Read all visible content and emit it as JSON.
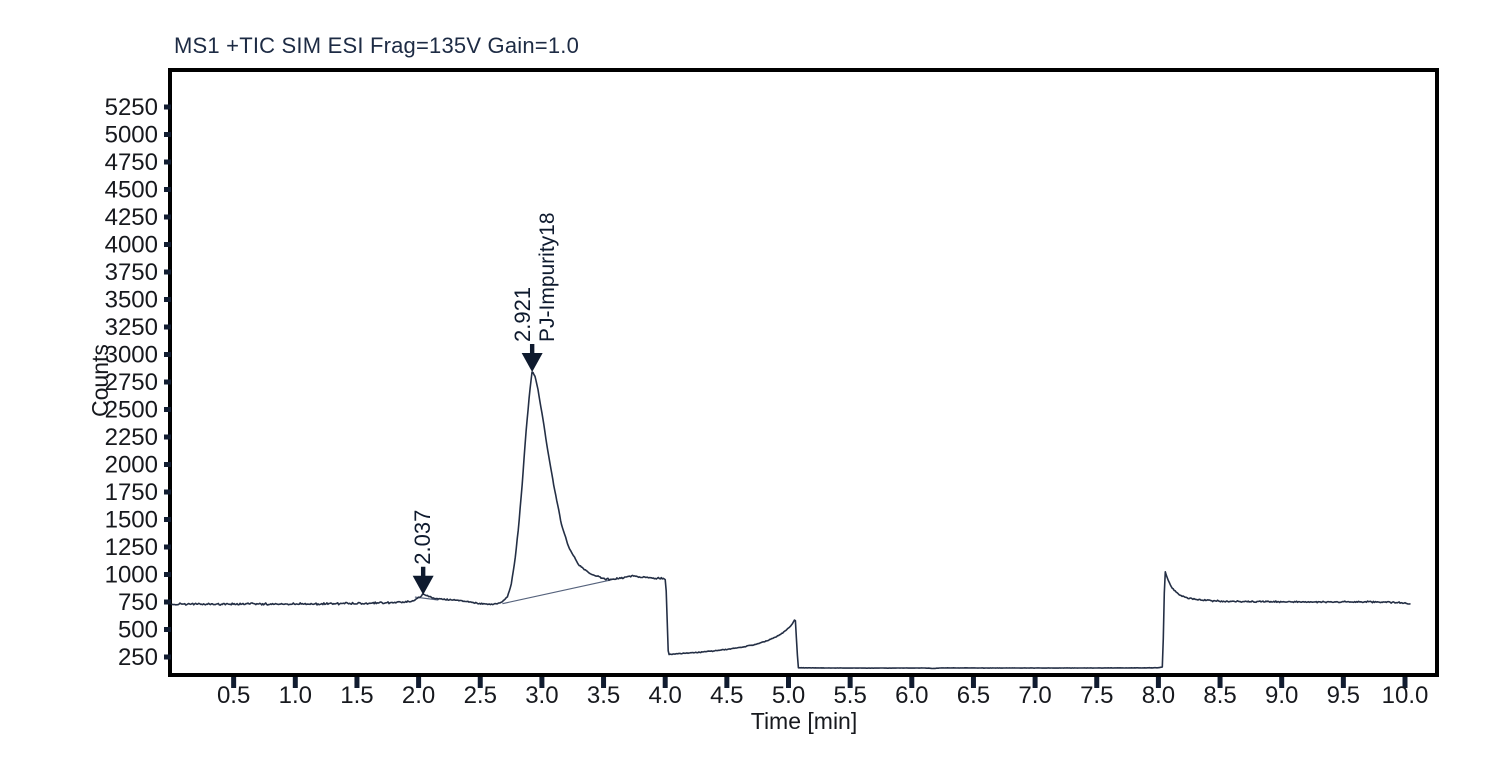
{
  "title": "MS1 +TIC SIM ESI Frag=135V Gain=1.0",
  "axes": {
    "x": {
      "label": "Time [min]",
      "tick_labels": [
        "0.5",
        "1.0",
        "1.5",
        "2.0",
        "2.5",
        "3.0",
        "3.5",
        "4.0",
        "4.5",
        "5.0",
        "5.5",
        "6.0",
        "6.5",
        "7.0",
        "7.5",
        "8.0",
        "8.5",
        "9.0",
        "9.5",
        "10.0"
      ]
    },
    "y": {
      "label": "Counts",
      "tick_values": [
        250,
        500,
        750,
        1000,
        1250,
        1500,
        1750,
        2000,
        2250,
        2500,
        2750,
        3000,
        3250,
        3500,
        3750,
        4000,
        4250,
        4500,
        4750,
        5000,
        5250
      ]
    }
  },
  "colors": {
    "background": "#ffffff",
    "trace": "#242f45",
    "axis_border": "#000000",
    "tick": "#111c30",
    "tick_label": "#17191e",
    "title_text": "#1d2b44",
    "annotation": "#0e1a2e",
    "baseline_line": "#55627c"
  },
  "chart_data": {
    "type": "line",
    "title": "MS1 +TIC SIM ESI Frag=135V Gain=1.0",
    "xlabel": "Time [min]",
    "ylabel": "Counts",
    "xlim": [
      0,
      10.24
    ],
    "ylim": [
      105,
      5570
    ],
    "x_ticks": [
      0.5,
      1.0,
      1.5,
      2.0,
      2.5,
      3.0,
      3.5,
      4.0,
      4.5,
      5.0,
      5.5,
      6.0,
      6.5,
      7.0,
      7.5,
      8.0,
      8.5,
      9.0,
      9.5,
      10.0
    ],
    "y_ticks": [
      250,
      500,
      750,
      1000,
      1250,
      1500,
      1750,
      2000,
      2250,
      2500,
      2750,
      3000,
      3250,
      3500,
      3750,
      4000,
      4250,
      4500,
      4750,
      5000,
      5250
    ],
    "grid": false,
    "legend": "none",
    "series": [
      {
        "name": "TIC",
        "unit": "counts",
        "anchors": [
          [
            0.0,
            728
          ],
          [
            0.2,
            733
          ],
          [
            0.4,
            730
          ],
          [
            0.6,
            734
          ],
          [
            0.8,
            731
          ],
          [
            1.0,
            735
          ],
          [
            1.2,
            732
          ],
          [
            1.4,
            737
          ],
          [
            1.6,
            739
          ],
          [
            1.8,
            744
          ],
          [
            1.93,
            750
          ],
          [
            1.97,
            768
          ],
          [
            2.01,
            795
          ],
          [
            2.037,
            823
          ],
          [
            2.07,
            806
          ],
          [
            2.12,
            786
          ],
          [
            2.2,
            773
          ],
          [
            2.3,
            769
          ],
          [
            2.4,
            753
          ],
          [
            2.5,
            737
          ],
          [
            2.58,
            729
          ],
          [
            2.64,
            734
          ],
          [
            2.68,
            752
          ],
          [
            2.72,
            800
          ],
          [
            2.75,
            900
          ],
          [
            2.78,
            1120
          ],
          [
            2.81,
            1420
          ],
          [
            2.84,
            1820
          ],
          [
            2.87,
            2280
          ],
          [
            2.9,
            2650
          ],
          [
            2.921,
            2850
          ],
          [
            2.945,
            2800
          ],
          [
            2.97,
            2670
          ],
          [
            3.0,
            2470
          ],
          [
            3.05,
            2110
          ],
          [
            3.1,
            1790
          ],
          [
            3.16,
            1450
          ],
          [
            3.22,
            1240
          ],
          [
            3.3,
            1085
          ],
          [
            3.4,
            1000
          ],
          [
            3.5,
            962
          ],
          [
            3.565,
            952
          ],
          [
            3.64,
            968
          ],
          [
            3.72,
            985
          ],
          [
            3.8,
            978
          ],
          [
            3.88,
            972
          ],
          [
            3.96,
            966
          ],
          [
            4.005,
            952
          ],
          [
            4.025,
            272
          ],
          [
            4.1,
            278
          ],
          [
            4.25,
            290
          ],
          [
            4.4,
            306
          ],
          [
            4.55,
            326
          ],
          [
            4.7,
            356
          ],
          [
            4.8,
            388
          ],
          [
            4.9,
            432
          ],
          [
            4.98,
            492
          ],
          [
            5.03,
            548
          ],
          [
            5.055,
            600
          ],
          [
            5.065,
            400
          ],
          [
            5.078,
            152
          ],
          [
            5.3,
            150
          ],
          [
            5.7,
            149
          ],
          [
            6.1,
            150
          ],
          [
            6.18,
            146
          ],
          [
            6.24,
            151
          ],
          [
            6.6,
            150
          ],
          [
            7.0,
            150
          ],
          [
            7.4,
            150
          ],
          [
            7.8,
            151
          ],
          [
            8.0,
            152
          ],
          [
            8.035,
            160
          ],
          [
            8.052,
            1040
          ],
          [
            8.065,
            990
          ],
          [
            8.09,
            915
          ],
          [
            8.13,
            852
          ],
          [
            8.18,
            808
          ],
          [
            8.25,
            783
          ],
          [
            8.35,
            766
          ],
          [
            8.5,
            757
          ],
          [
            8.7,
            754
          ],
          [
            9.0,
            752
          ],
          [
            9.3,
            750
          ],
          [
            9.6,
            752
          ],
          [
            9.85,
            748
          ],
          [
            10.0,
            742
          ],
          [
            10.04,
            730
          ]
        ]
      }
    ],
    "noise_regions": [
      {
        "from": 0.0,
        "to": 1.93,
        "amp": 11
      },
      {
        "from": 1.93,
        "to": 2.6,
        "amp": 7
      },
      {
        "from": 2.6,
        "to": 3.44,
        "amp": 5
      },
      {
        "from": 3.44,
        "to": 4.0,
        "amp": 10
      },
      {
        "from": 4.04,
        "to": 5.03,
        "amp": 5
      },
      {
        "from": 5.09,
        "to": 8.02,
        "amp": 1.5
      },
      {
        "from": 8.08,
        "to": 10.05,
        "amp": 8
      }
    ],
    "peaks": [
      {
        "t": 2.037,
        "rt_label": "2.037",
        "name": "",
        "apex_counts": 825
      },
      {
        "t": 2.921,
        "rt_label": "2.921",
        "name": "PJ-Impurity18",
        "apex_counts": 2850
      }
    ],
    "integration_baselines": [
      [
        [
          2.68,
          735
        ],
        [
          3.565,
          952
        ]
      ],
      [
        [
          1.97,
          795
        ],
        [
          2.16,
          768
        ]
      ]
    ]
  }
}
